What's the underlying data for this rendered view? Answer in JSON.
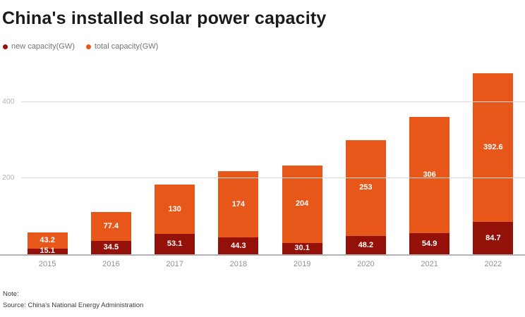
{
  "title": "China's installed solar power capacity",
  "legend": [
    {
      "label": "new capacity(GW)",
      "color": "#931109"
    },
    {
      "label": "total capacity(GW)",
      "color": "#e7571a"
    }
  ],
  "chart_data": {
    "type": "bar",
    "stacked": true,
    "title": "China's installed solar power capacity",
    "categories": [
      "2015",
      "2016",
      "2017",
      "2018",
      "2019",
      "2020",
      "2021",
      "2022"
    ],
    "series": [
      {
        "name": "new capacity(GW)",
        "color": "#931109",
        "values": [
          15.1,
          34.5,
          53.1,
          44.3,
          30.1,
          48.2,
          54.9,
          84.7
        ]
      },
      {
        "name": "total capacity(GW)",
        "color": "#e7571a",
        "values": [
          43.2,
          77.4,
          130,
          174,
          204,
          253,
          306,
          392.6
        ]
      }
    ],
    "xlabel": "",
    "ylabel": "",
    "yticks": [
      200,
      400
    ],
    "ylim": [
      0,
      482
    ],
    "grid": true,
    "legend_position": "top-left",
    "value_label_color": "#ffffff"
  },
  "note": {
    "note_label": "Note:",
    "source": "Source: China's National Energy Administration"
  }
}
